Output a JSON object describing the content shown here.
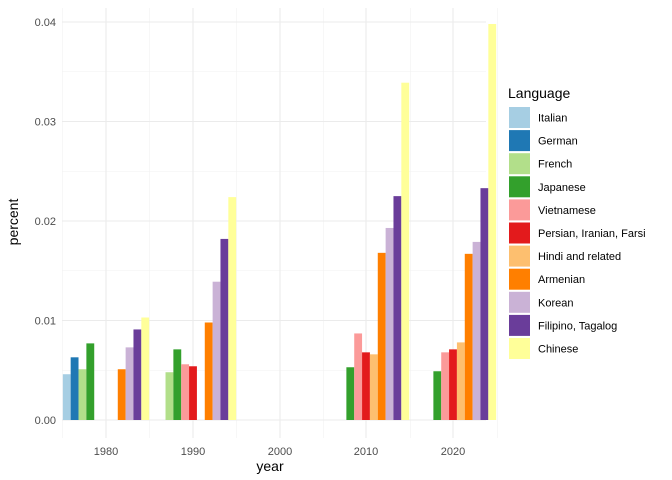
{
  "chart_data": {
    "type": "bar",
    "xlabel": "year",
    "ylabel": "percent",
    "legend_title": "Language",
    "legend_position": "right",
    "grid": true,
    "ylim": [
      0,
      0.0408
    ],
    "y_ticks": [
      0.0,
      0.01,
      0.02,
      0.03,
      0.04
    ],
    "y_tick_labels": [
      "0.00",
      "0.01",
      "0.02",
      "0.03",
      "0.04"
    ],
    "categories": [
      "1980",
      "1990",
      "2000",
      "2010",
      "2020"
    ],
    "series": [
      {
        "name": "Italian",
        "color": "#A6CEE3",
        "values": [
          0.0046,
          null,
          null,
          null,
          null
        ]
      },
      {
        "name": "German",
        "color": "#1F78B4",
        "values": [
          0.0063,
          null,
          null,
          null,
          null
        ]
      },
      {
        "name": "French",
        "color": "#B2DF8A",
        "values": [
          0.0051,
          0.0048,
          null,
          null,
          null
        ]
      },
      {
        "name": "Japanese",
        "color": "#33A02C",
        "values": [
          0.0077,
          0.0071,
          null,
          0.0053,
          0.0049
        ]
      },
      {
        "name": "Vietnamese",
        "color": "#FB9A99",
        "values": [
          null,
          0.0056,
          null,
          0.0087,
          0.0068
        ]
      },
      {
        "name": "Persian, Iranian, Farsi",
        "color": "#E31A1C",
        "values": [
          null,
          0.0054,
          null,
          0.0068,
          0.0071
        ]
      },
      {
        "name": "Hindi and related",
        "color": "#FDBF6F",
        "values": [
          null,
          null,
          null,
          0.0066,
          0.0078
        ]
      },
      {
        "name": "Armenian",
        "color": "#FF7F00",
        "values": [
          0.0051,
          0.0098,
          null,
          0.0168,
          0.0167
        ]
      },
      {
        "name": "Korean",
        "color": "#CAB2D6",
        "values": [
          0.0073,
          0.0139,
          null,
          0.0193,
          0.0179
        ]
      },
      {
        "name": "Filipino, Tagalog",
        "color": "#6A3D9A",
        "values": [
          0.0091,
          0.0182,
          null,
          0.0225,
          0.0233
        ]
      },
      {
        "name": "Chinese",
        "color": "#FFFF99",
        "values": [
          0.0103,
          0.0224,
          null,
          0.0339,
          0.0398
        ]
      }
    ]
  }
}
